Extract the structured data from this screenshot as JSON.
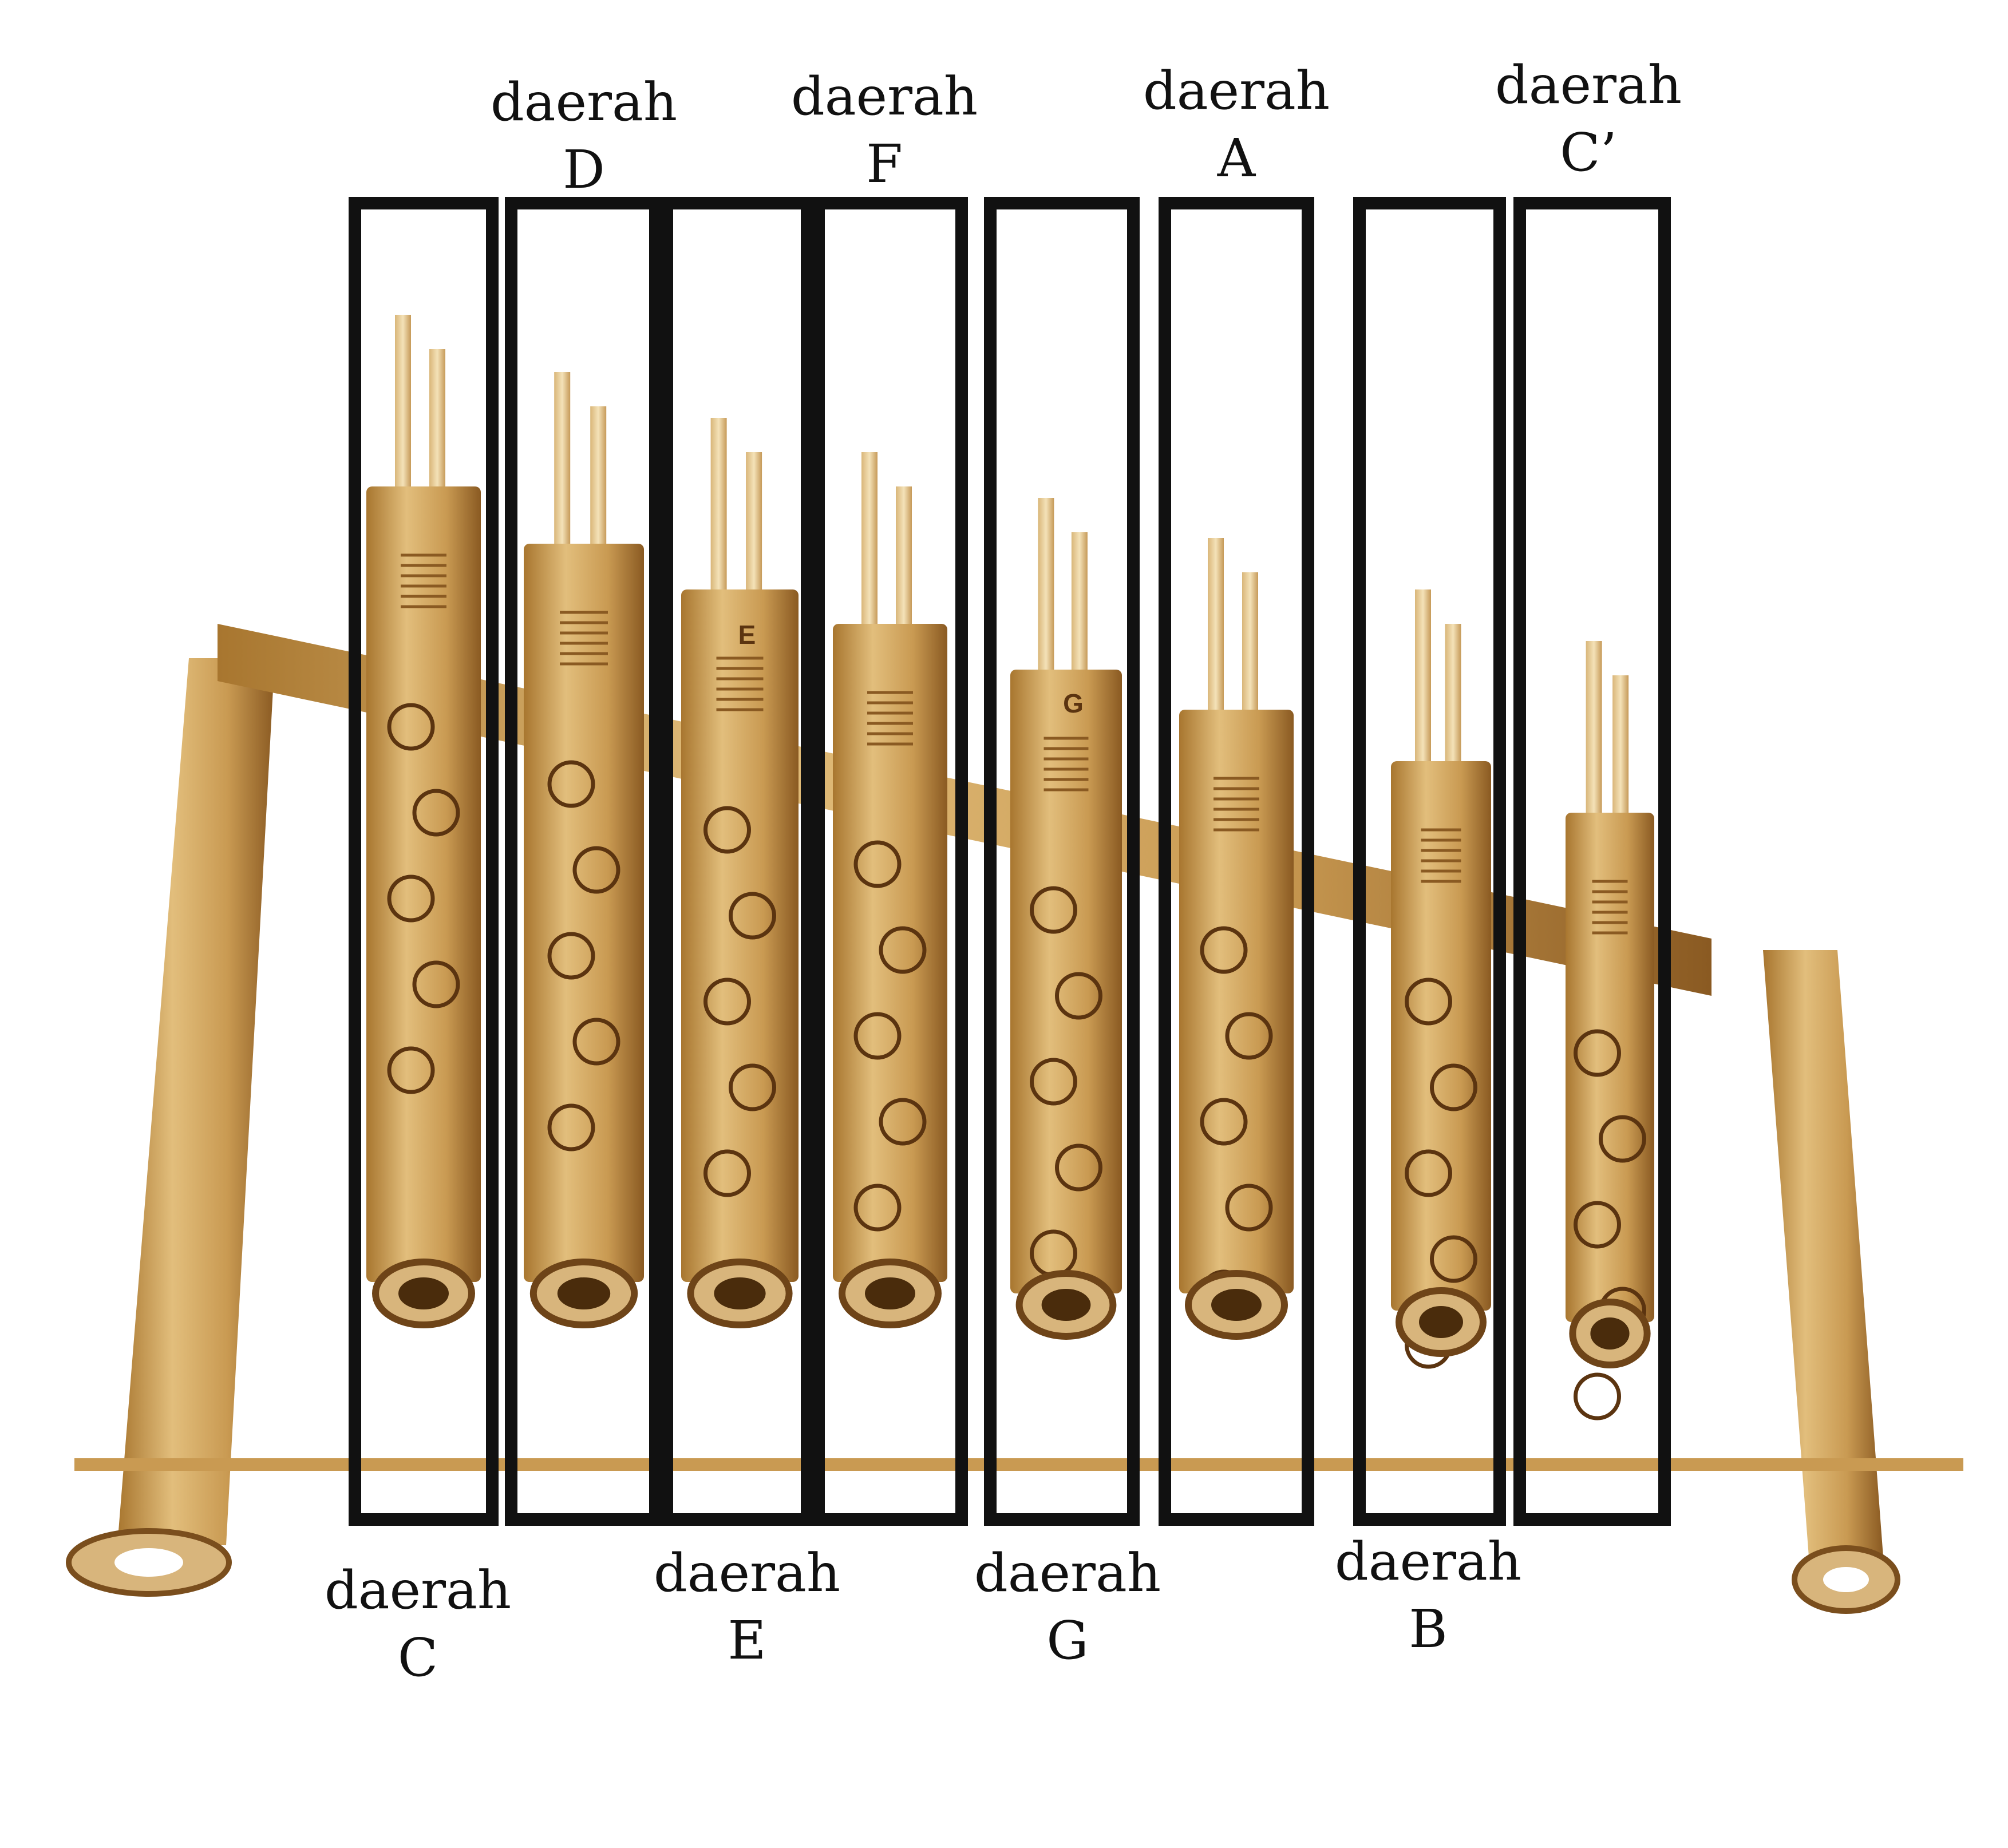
{
  "regions": [
    {
      "word": "daerah",
      "note": "C"
    },
    {
      "word": "daerah",
      "note": "D"
    },
    {
      "word": "daerah",
      "note": "E"
    },
    {
      "word": "daerah",
      "note": "F"
    },
    {
      "word": "daerah",
      "note": "G"
    },
    {
      "word": "daerah",
      "note": "A"
    },
    {
      "word": "daerah",
      "note": "B"
    },
    {
      "word": "daerah",
      "note": "C’"
    }
  ],
  "tube_letters": [
    "E",
    "G"
  ],
  "colors": {
    "box": "#111111",
    "bamboo": "#c99a52",
    "bamboo_dark": "#8a5a22",
    "bamboo_light": "#e9cf9a",
    "engraving": "#5b3410"
  }
}
